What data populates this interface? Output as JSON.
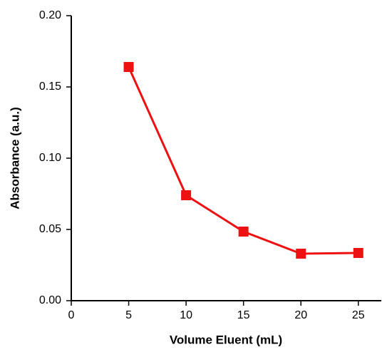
{
  "chart_data": {
    "type": "line",
    "x_label": "Volume  Eluent (mL)",
    "y_label": "Absorbance (a.u.)",
    "x": [
      5,
      10,
      15,
      20,
      25
    ],
    "series": [
      {
        "color": "#ee1111",
        "values": [
          0.164,
          0.074,
          0.0485,
          0.033,
          0.0335
        ]
      }
    ],
    "xlim": [
      0,
      27
    ],
    "xticks": [
      0,
      5,
      10,
      15,
      20,
      25
    ],
    "ylim": [
      0,
      0.2
    ],
    "yticks": [
      {
        "value": 0,
        "label": "0.00"
      },
      {
        "value": 0.05,
        "label": "0.05"
      },
      {
        "value": 0.1,
        "label": "0.10"
      },
      {
        "value": 0.15,
        "label": "0.15"
      },
      {
        "value": 0.2,
        "label": "0.20"
      }
    ]
  }
}
